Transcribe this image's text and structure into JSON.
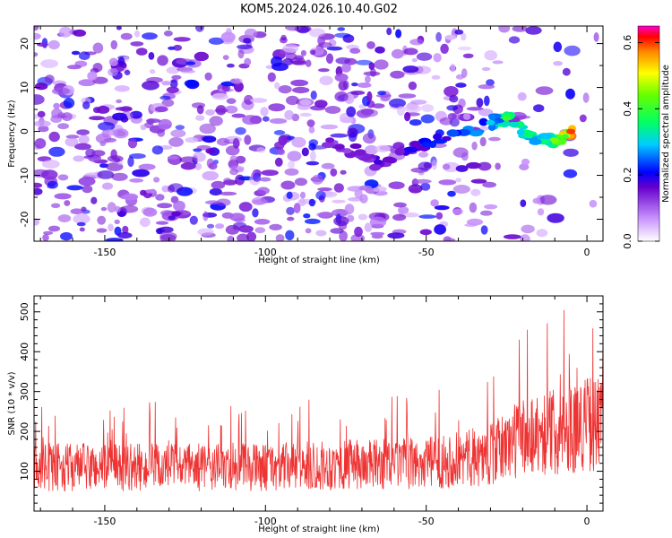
{
  "title": "KOM5.2024.026.10.40.G02",
  "chart_data": [
    {
      "type": "heatmap",
      "xlabel": "Height of straight line (km)",
      "ylabel": "Frequency (Hz)",
      "xlim": [
        -172,
        5
      ],
      "ylim": [
        -25,
        24
      ],
      "xticks": [
        -150,
        -100,
        -50,
        0
      ],
      "yticks": [
        -20,
        -10,
        0,
        10,
        20
      ],
      "colorbar": {
        "label": "Normalized spectral amplitude",
        "range": [
          0,
          0.65
        ],
        "ticks": [
          "0.0",
          "0.2",
          "0.4",
          "0.6"
        ],
        "colormap": "rainbow"
      },
      "features": [
        {
          "x": -5,
          "y": 0,
          "value": 0.6
        },
        {
          "x": -10,
          "y": -2,
          "value": 0.45
        },
        {
          "x": -18,
          "y": -1,
          "value": 0.35
        },
        {
          "x": -25,
          "y": 3,
          "value": 0.4
        },
        {
          "x": -30,
          "y": 2,
          "value": 0.3
        },
        {
          "x": -50,
          "y": -3,
          "value": 0.22
        },
        {
          "x": -65,
          "y": -7,
          "value": 0.18
        },
        {
          "x": -80,
          "y": -2,
          "value": 0.15
        }
      ]
    },
    {
      "type": "line",
      "xlabel": "Height of straight line (km)",
      "ylabel": "SNR (10 * v/v)",
      "xlim": [
        -172,
        5
      ],
      "ylim": [
        0,
        540
      ],
      "xticks": [
        -150,
        -100,
        -50,
        0
      ],
      "yticks": [
        100,
        200,
        300,
        400,
        500
      ],
      "color": "#ee3333",
      "series_description_points": [
        {
          "x": -170,
          "y": 110
        },
        {
          "x": -150,
          "y": 110
        },
        {
          "x": -100,
          "y": 110
        },
        {
          "x": -50,
          "y": 120
        },
        {
          "x": -30,
          "y": 140
        },
        {
          "x": -20,
          "y": 190
        },
        {
          "x": -10,
          "y": 200
        },
        {
          "x": 0,
          "y": 220
        }
      ]
    }
  ]
}
